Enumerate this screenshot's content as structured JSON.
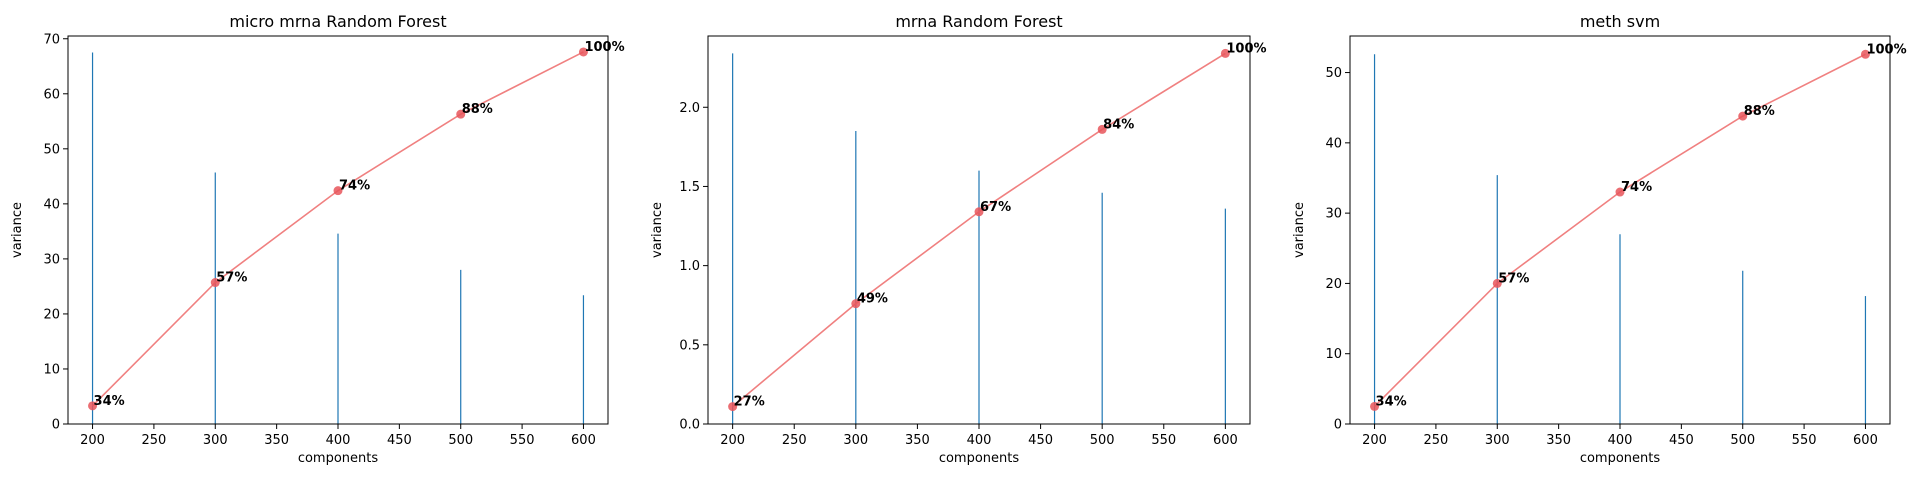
{
  "chart_data": [
    {
      "type": "bar+line",
      "title": "micro mrna  Random Forest",
      "xlabel": "components",
      "ylabel": "variance",
      "xlim": [
        180,
        620
      ],
      "ylim": [
        0,
        70.5
      ],
      "xticks": [
        200,
        250,
        300,
        350,
        400,
        450,
        500,
        550,
        600
      ],
      "yticks": [
        0,
        10,
        20,
        30,
        40,
        50,
        60,
        70
      ],
      "x": [
        200,
        300,
        400,
        500,
        600
      ],
      "bar_values": [
        67.5,
        45.7,
        34.6,
        28.0,
        23.4
      ],
      "cumulative_values": [
        3.3,
        25.7,
        42.4,
        56.3,
        67.6
      ],
      "percent_labels": [
        "34%",
        "57%",
        "74%",
        "88%",
        "100%"
      ],
      "bar_color": "#1f77b4",
      "line_color": "#f08080",
      "point_color": "#e8555a"
    },
    {
      "type": "bar+line",
      "title": "mrna Random Forest",
      "xlabel": "components",
      "ylabel": "variance",
      "xlim": [
        180,
        620
      ],
      "ylim": [
        0,
        2.45
      ],
      "xticks": [
        200,
        250,
        300,
        350,
        400,
        450,
        500,
        550,
        600
      ],
      "yticks": [
        0.0,
        0.5,
        1.0,
        1.5,
        2.0
      ],
      "ytick_labels": [
        "0.0",
        "0.5",
        "1.0",
        "1.5",
        "2.0"
      ],
      "x": [
        200,
        300,
        400,
        500,
        600
      ],
      "bar_values": [
        2.34,
        1.85,
        1.6,
        1.46,
        1.36
      ],
      "cumulative_values": [
        0.11,
        0.76,
        1.34,
        1.86,
        2.34
      ],
      "percent_labels": [
        "27%",
        "49%",
        "67%",
        "84%",
        "100%"
      ],
      "bar_color": "#1f77b4",
      "line_color": "#f08080",
      "point_color": "#e8555a"
    },
    {
      "type": "bar+line",
      "title": "meth svm",
      "xlabel": "components",
      "ylabel": "variance",
      "xlim": [
        180,
        620
      ],
      "ylim": [
        0,
        55.2
      ],
      "xticks": [
        200,
        250,
        300,
        350,
        400,
        450,
        500,
        550,
        600
      ],
      "yticks": [
        0,
        10,
        20,
        30,
        40,
        50
      ],
      "x": [
        200,
        300,
        400,
        500,
        600
      ],
      "bar_values": [
        52.6,
        35.4,
        27.0,
        21.8,
        18.2
      ],
      "cumulative_values": [
        2.5,
        20.0,
        33.0,
        43.8,
        52.6
      ],
      "percent_labels": [
        "34%",
        "57%",
        "74%",
        "88%",
        "100%"
      ],
      "bar_color": "#1f77b4",
      "line_color": "#f08080",
      "point_color": "#e8555a"
    }
  ]
}
